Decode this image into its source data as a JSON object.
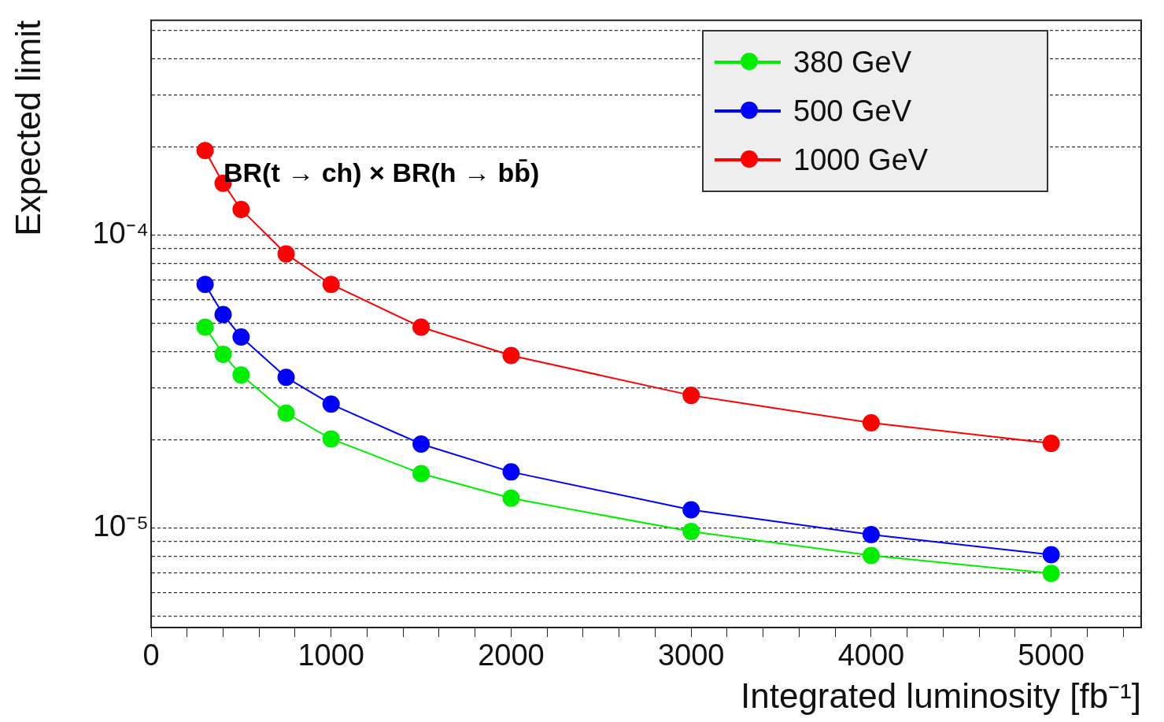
{
  "chart_data": {
    "type": "line",
    "xlabel": "Integrated luminosity [fb⁻¹]",
    "ylabel": "Expected limit",
    "annotations": [
      "BR(t → ch) × BR(h → bb̄)"
    ],
    "x": [
      300,
      400,
      500,
      750,
      1000,
      1500,
      2000,
      3000,
      4000,
      5000
    ],
    "series": [
      {
        "name": "380 GeV",
        "color": "#00ee00",
        "values": [
          4.84e-05,
          3.91e-05,
          3.32e-05,
          2.46e-05,
          2.01e-05,
          1.53e-05,
          1.26e-05,
          9.7e-06,
          8.03e-06,
          6.98e-06
        ]
      },
      {
        "name": "500 GeV",
        "color": "#0000ff",
        "values": [
          6.77e-05,
          5.34e-05,
          4.48e-05,
          3.26e-05,
          2.64e-05,
          1.93e-05,
          1.55e-05,
          1.15e-05,
          9.47e-06,
          8.08e-06
        ]
      },
      {
        "name": "1000 GeV",
        "color": "#ff0000",
        "values": [
          0.000194,
          0.00015,
          0.000122,
          8.6e-05,
          6.77e-05,
          4.84e-05,
          3.87e-05,
          2.83e-05,
          2.28e-05,
          1.94e-05
        ]
      }
    ],
    "log": "y",
    "xlim": [
      0,
      5500
    ],
    "ylim": [
      4.56e-06,
      0.00054
    ],
    "xticks": [
      0,
      {
        "value": 200,
        "label": null
      },
      {
        "value": 400,
        "label": null
      },
      {
        "value": 600,
        "label": null
      },
      {
        "value": 800,
        "label": null
      },
      1000,
      {
        "value": 1200,
        "label": null
      },
      {
        "value": 1400,
        "label": null
      },
      {
        "value": 1600,
        "label": null
      },
      {
        "value": 1800,
        "label": null
      },
      2000,
      {
        "value": 2200,
        "label": null
      },
      {
        "value": 2400,
        "label": null
      },
      {
        "value": 2600,
        "label": null
      },
      {
        "value": 2800,
        "label": null
      },
      3000,
      {
        "value": 3200,
        "label": null
      },
      {
        "value": 3400,
        "label": null
      },
      {
        "value": 3600,
        "label": null
      },
      {
        "value": 3800,
        "label": null
      },
      4000,
      {
        "value": 4200,
        "label": null
      },
      {
        "value": 4400,
        "label": null
      },
      {
        "value": 4600,
        "label": null
      },
      {
        "value": 4800,
        "label": null
      },
      5000,
      {
        "value": 5200,
        "label": null
      },
      {
        "value": 5400,
        "label": null
      }
    ],
    "yticks": [
      {
        "value": 5e-06,
        "label": null
      },
      {
        "value": 6e-06,
        "label": null
      },
      {
        "value": 7e-06,
        "label": null
      },
      {
        "value": 8e-06,
        "label": null
      },
      {
        "value": 9e-06,
        "label": null
      },
      {
        "value": 1e-05,
        "label": "10⁻⁵"
      },
      {
        "value": 2e-05,
        "label": null
      },
      {
        "value": 3e-05,
        "label": null
      },
      {
        "value": 4e-05,
        "label": null
      },
      {
        "value": 5e-05,
        "label": null
      },
      {
        "value": 6e-05,
        "label": null
      },
      {
        "value": 7e-05,
        "label": null
      },
      {
        "value": 8e-05,
        "label": null
      },
      {
        "value": 9e-05,
        "label": null
      },
      {
        "value": 0.0001,
        "label": "10⁻⁴"
      },
      {
        "value": 0.0002,
        "label": null
      },
      {
        "value": 0.0003,
        "label": null
      },
      {
        "value": 0.0004,
        "label": null
      },
      {
        "value": 0.0005,
        "label": null
      }
    ],
    "grid": "y",
    "legend": "top right",
    "marker": "circle",
    "line_style": "solid"
  }
}
